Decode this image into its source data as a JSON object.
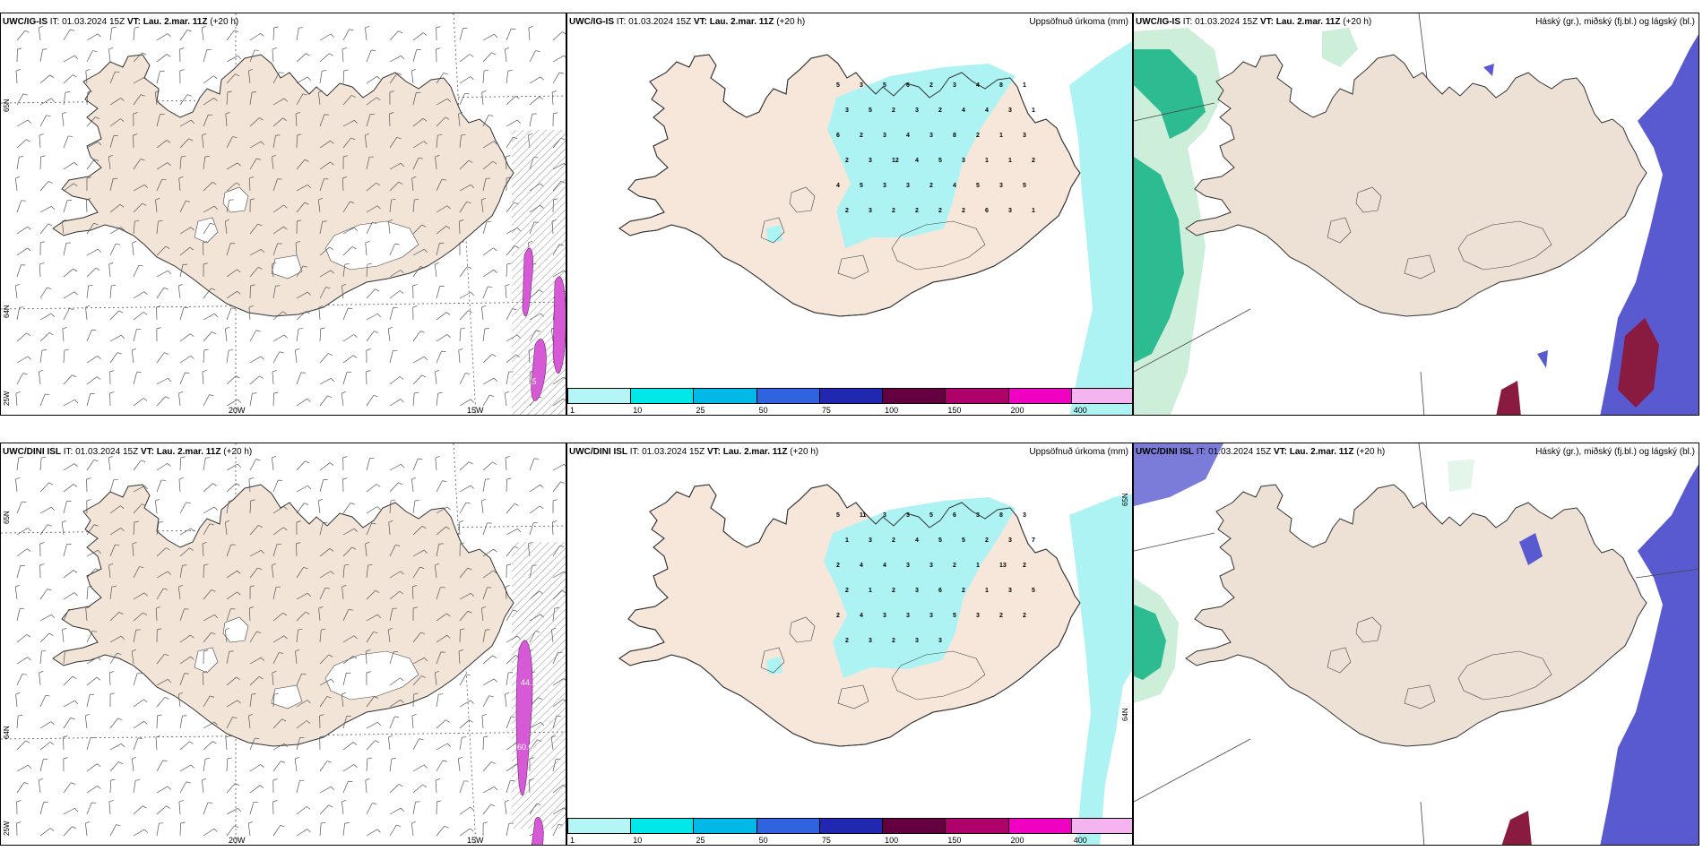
{
  "rows": [
    {
      "model": "UWC/IG-IS",
      "it_label": "IT:",
      "it": "01.03.2024 15Z",
      "vt_label": "VT:",
      "vt": "Lau. 2.mar. 11Z",
      "lead": "(+20 h)",
      "wind_panel": {
        "lat_labels": [
          "65N",
          "64N",
          "25W"
        ],
        "lon_labels": [
          "20W",
          "15W"
        ],
        "values": [
          "58.5"
        ]
      },
      "precip_panel": {
        "title": "Uppsöfnuð úrkoma (mm)",
        "values": [
          "5",
          "3",
          "5",
          "6",
          "2",
          "3",
          "4",
          "8",
          "1",
          "3",
          "5",
          "2",
          "3",
          "2",
          "4",
          "4",
          "3",
          "1",
          "6",
          "2",
          "3",
          "4",
          "3",
          "8",
          "2",
          "1",
          "3",
          "2",
          "3",
          "12",
          "4",
          "5",
          "3",
          "1",
          "1",
          "2",
          "4",
          "5",
          "3",
          "3",
          "2",
          "4",
          "5",
          "3",
          "5",
          "2",
          "3",
          "2",
          "2",
          "2",
          "2",
          "6",
          "3",
          "1"
        ]
      },
      "cloud_panel": {
        "title": "Háský (gr.), miðský (fj.bl.) og lágský (bl.)"
      }
    },
    {
      "model": "UWC/DINI ISL",
      "it_label": "IT:",
      "it": "01.03.2024 15Z",
      "vt_label": "VT:",
      "vt": "Lau. 2.mar. 11Z",
      "lead": "(+20 h)",
      "wind_panel": {
        "lat_labels": [
          "65N",
          "64N",
          "25W"
        ],
        "lon_labels": [
          "20W",
          "15W"
        ],
        "values": [
          "44.1",
          "60.6"
        ]
      },
      "precip_panel": {
        "title": "Uppsöfnuð úrkoma (mm)",
        "lat_labels": [
          "65N",
          "64N"
        ],
        "values": [
          "5",
          "11",
          "3",
          "3",
          "5",
          "6",
          "3",
          "8",
          "3",
          "1",
          "3",
          "2",
          "4",
          "5",
          "5",
          "2",
          "3",
          "7",
          "2",
          "4",
          "4",
          "3",
          "3",
          "2",
          "1",
          "13",
          "2",
          "2",
          "1",
          "2",
          "3",
          "6",
          "2",
          "1",
          "3",
          "5",
          "2",
          "4",
          "3",
          "3",
          "3",
          "5",
          "3",
          "2",
          "2",
          "2",
          "3",
          "2",
          "3",
          "3"
        ]
      },
      "cloud_panel": {
        "title": "Háský (gr.), miðský (fj.bl.) og lágský (bl.)"
      }
    }
  ],
  "colorbar": {
    "ticks": [
      "1",
      "10",
      "25",
      "50",
      "75",
      "100",
      "150",
      "200",
      "400"
    ],
    "colors": [
      "#b4f6f6",
      "#00e8e8",
      "#00b9e6",
      "#2f63e0",
      "#2027b0",
      "#640040",
      "#b0006a",
      "#f000c0",
      "#f4b4f0"
    ]
  },
  "colors": {
    "land": "#f2e5d8",
    "precip": "#aef3f3",
    "high_cloud": "#10b384",
    "mid_cloud": "#5a5ad0",
    "low_cloud": "#8a1b40",
    "wind_fill": "#d65ad6"
  }
}
